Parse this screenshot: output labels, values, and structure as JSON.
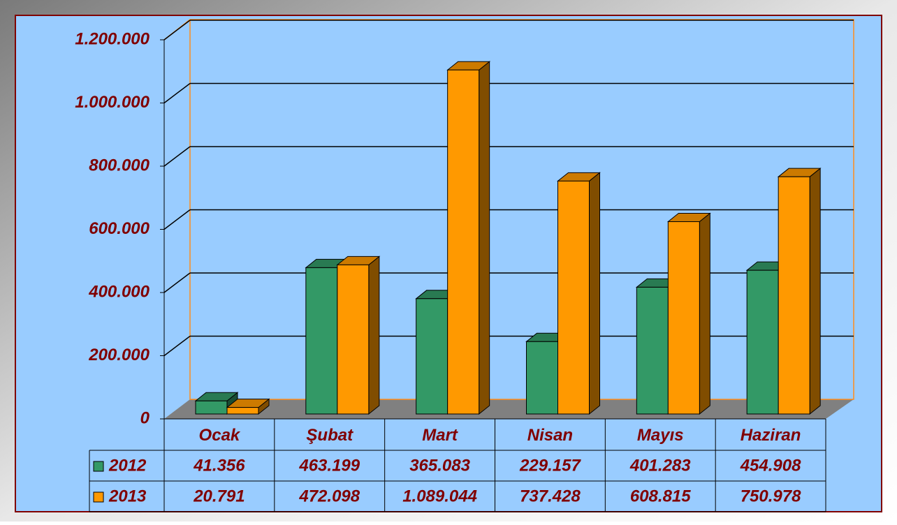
{
  "chart_data": {
    "type": "bar3d",
    "categories": [
      "Ocak",
      "Şubat",
      "Mart",
      "Nisan",
      "Mayıs",
      "Haziran"
    ],
    "series": [
      {
        "name": "2012",
        "color": "#339966",
        "values": [
          41356,
          463199,
          365083,
          229157,
          401283,
          454908
        ],
        "value_labels": [
          "41.356",
          "463.199",
          "365.083",
          "229.157",
          "401.283",
          "454.908"
        ]
      },
      {
        "name": "2013",
        "color": "#ff9900",
        "values": [
          20791,
          472098,
          1089044,
          737428,
          608815,
          750978
        ],
        "value_labels": [
          "20.791",
          "472.098",
          "1.089.044",
          "737.428",
          "608.815",
          "750.978"
        ]
      }
    ],
    "ylim": [
      0,
      1200000
    ],
    "yticks": [
      0,
      {
        "value": 200000,
        "label": "200.000"
      },
      {
        "value": 400000,
        "label": "400.000"
      },
      {
        "value": 600000,
        "label": "600.000"
      },
      {
        "value": 800000,
        "label": "800.000"
      },
      {
        "value": 1000000,
        "label": "1.000.000"
      },
      {
        "value": 1200000,
        "label": "1.200.000"
      }
    ],
    "grid": true,
    "data_table": true
  }
}
